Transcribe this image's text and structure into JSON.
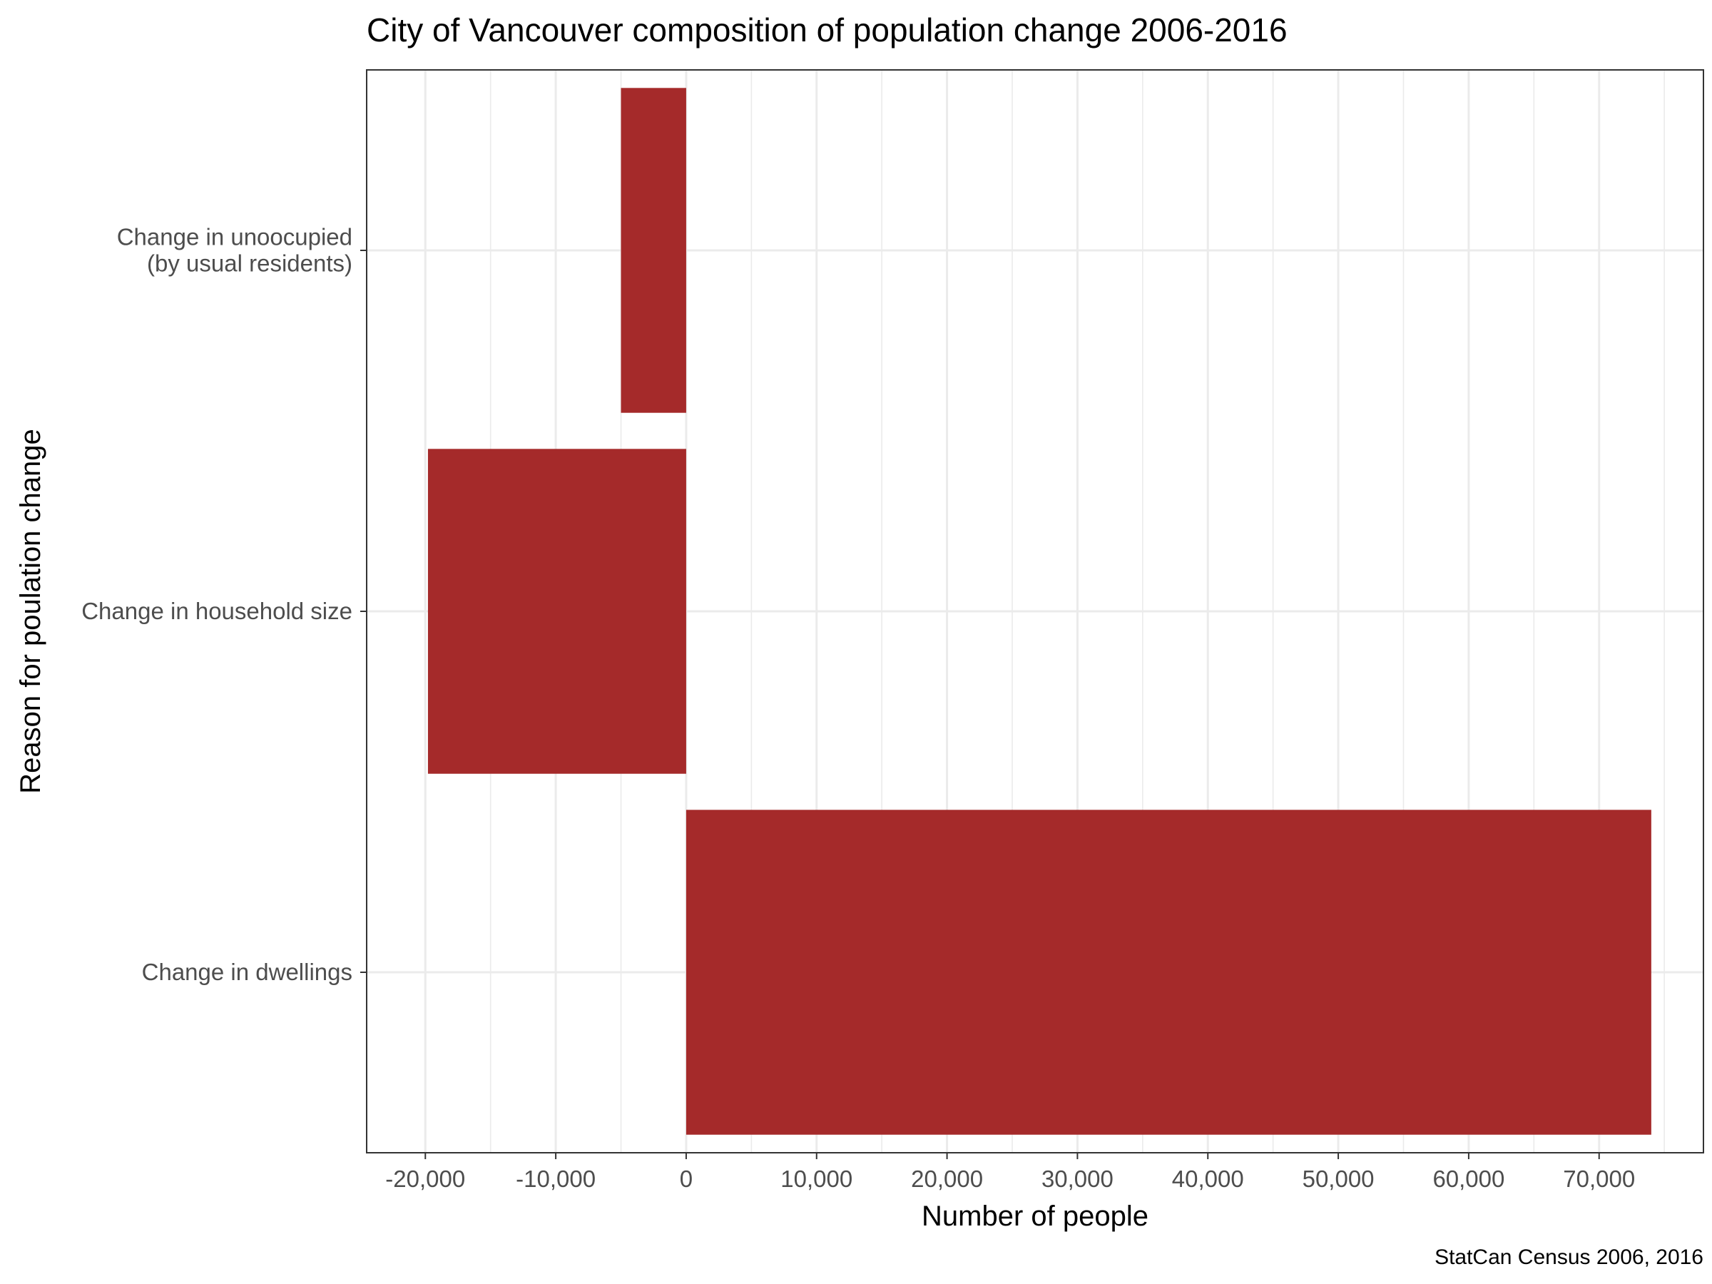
{
  "chart_data": {
    "type": "bar",
    "orientation": "horizontal",
    "title": "City of Vancouver composition of population change 2006-2016",
    "xlabel": "Number of people",
    "ylabel": "Reason for poulation change",
    "caption": "StatCan Census 2006, 2016",
    "categories": [
      [
        "Change in unoocupied",
        "(by usual residents)"
      ],
      [
        "Change in household size"
      ],
      [
        "Change in dwellings"
      ]
    ],
    "values": [
      -5000,
      -19800,
      74000
    ],
    "xlim": [
      -24500,
      78000
    ],
    "xticks": [
      -20000,
      -10000,
      0,
      10000,
      20000,
      30000,
      40000,
      50000,
      60000,
      70000
    ],
    "xtick_labels": [
      "-20,000",
      "-10,000",
      "0",
      "10,000",
      "20,000",
      "30,000",
      "40,000",
      "50,000",
      "60,000",
      "70,000"
    ],
    "grid": true,
    "bar_color": "#a52a2a"
  }
}
